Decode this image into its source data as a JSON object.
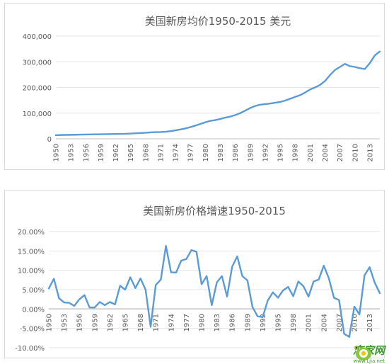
{
  "colors": {
    "series": "#5b9bd5"
  },
  "chart_data": [
    {
      "type": "line",
      "title": "美国新房均价1950-2015 美元",
      "x_start": 1950,
      "x_end": 2015,
      "x_tick_labels": [
        "1950",
        "1953",
        "1956",
        "1959",
        "1962",
        "1965",
        "1968",
        "1971",
        "1974",
        "1977",
        "1980",
        "1983",
        "1986",
        "1989",
        "1992",
        "1995",
        "1998",
        "2001",
        "2004",
        "2007",
        "2010",
        "2013"
      ],
      "y_tick_labels": [
        "0",
        "100,000",
        "200,000",
        "300,000",
        "400,000"
      ],
      "ylim": [
        0,
        400000
      ],
      "grid": true,
      "values": [
        11000,
        12000,
        12500,
        13000,
        13200,
        13500,
        14000,
        14500,
        14800,
        15000,
        15500,
        15800,
        16000,
        16500,
        17000,
        18500,
        19500,
        21000,
        22500,
        24500,
        23400,
        25000,
        27600,
        32500,
        35900,
        39300,
        44200,
        48800,
        55700,
        62900,
        64600,
        68900,
        69300,
        75300,
        79900,
        84300,
        92000,
        104500,
        112500,
        120000,
        122900,
        120000,
        121500,
        126500,
        130000,
        133900,
        140000,
        146000,
        152500,
        161000,
        169000,
        175200,
        187600,
        195000,
        221000,
        240900,
        246500,
        247900,
        232100,
        216700,
        221800,
        227200,
        245200,
        268900,
        288500,
        294200
      ],
      "display_values": [
        14000,
        14800,
        15200,
        15500,
        15900,
        16300,
        16700,
        17100,
        17400,
        17700,
        18000,
        18400,
        18800,
        19200,
        19600,
        20500,
        21500,
        22500,
        23500,
        25000,
        26000,
        26500,
        27500,
        30000,
        33000,
        36500,
        40500,
        45500,
        51500,
        58000,
        64500,
        70000,
        73000,
        77500,
        82500,
        86500,
        92500,
        100000,
        110000,
        120000,
        128000,
        133000,
        135000,
        137500,
        140500,
        143500,
        149000,
        156000,
        163000,
        170000,
        180000,
        192000,
        200000,
        210000,
        225000,
        248000,
        268000,
        280000,
        292000,
        283000,
        280000,
        275000,
        272000,
        295000,
        325000,
        340000
      ]
    },
    {
      "type": "line",
      "title": "美国新房价格增速1950-2015",
      "x_start": 1950,
      "x_end": 2015,
      "x_tick_labels": [
        "1950",
        "1953",
        "1956",
        "1959",
        "1962",
        "1965",
        "1968",
        "1971",
        "1974",
        "1977",
        "1980",
        "1983",
        "1986",
        "1989",
        "1992",
        "1995",
        "1998",
        "2001",
        "2004",
        "2007",
        "2010",
        "2013"
      ],
      "y_tick_labels": [
        "20.00%",
        "15.00%",
        "10.00%",
        "5.00%",
        "0.00%",
        "-5.00%",
        "-10.00%"
      ],
      "ylim": [
        -10,
        20
      ],
      "grid": true,
      "values": [
        5.3,
        7.8,
        2.8,
        1.7,
        1.6,
        0.8,
        2.5,
        3.6,
        0.4,
        0.4,
        1.8,
        1.0,
        1.8,
        1.2,
        6.0,
        5.0,
        8.2,
        5.4,
        7.9,
        5.0,
        -4.6,
        6.2,
        7.6,
        16.3,
        9.5,
        9.4,
        12.5,
        12.9,
        15.2,
        14.8,
        6.4,
        8.5,
        1.0,
        6.9,
        8.5,
        3.2,
        10.9,
        13.6,
        8.5,
        7.4,
        0.5,
        -1.9,
        -2.1,
        2.2,
        4.3,
        2.9,
        4.8,
        5.7,
        3.3,
        7.1,
        5.9,
        3.2,
        7.1,
        7.6,
        11.2,
        7.9,
        2.9,
        2.3,
        -6.4,
        -7.2,
        0.6,
        -1.4,
        8.7,
        10.8,
        6.8,
        4.1
      ]
    }
  ],
  "watermark": {
    "brand": "恋家网",
    "url": "www.Ljia.net"
  }
}
